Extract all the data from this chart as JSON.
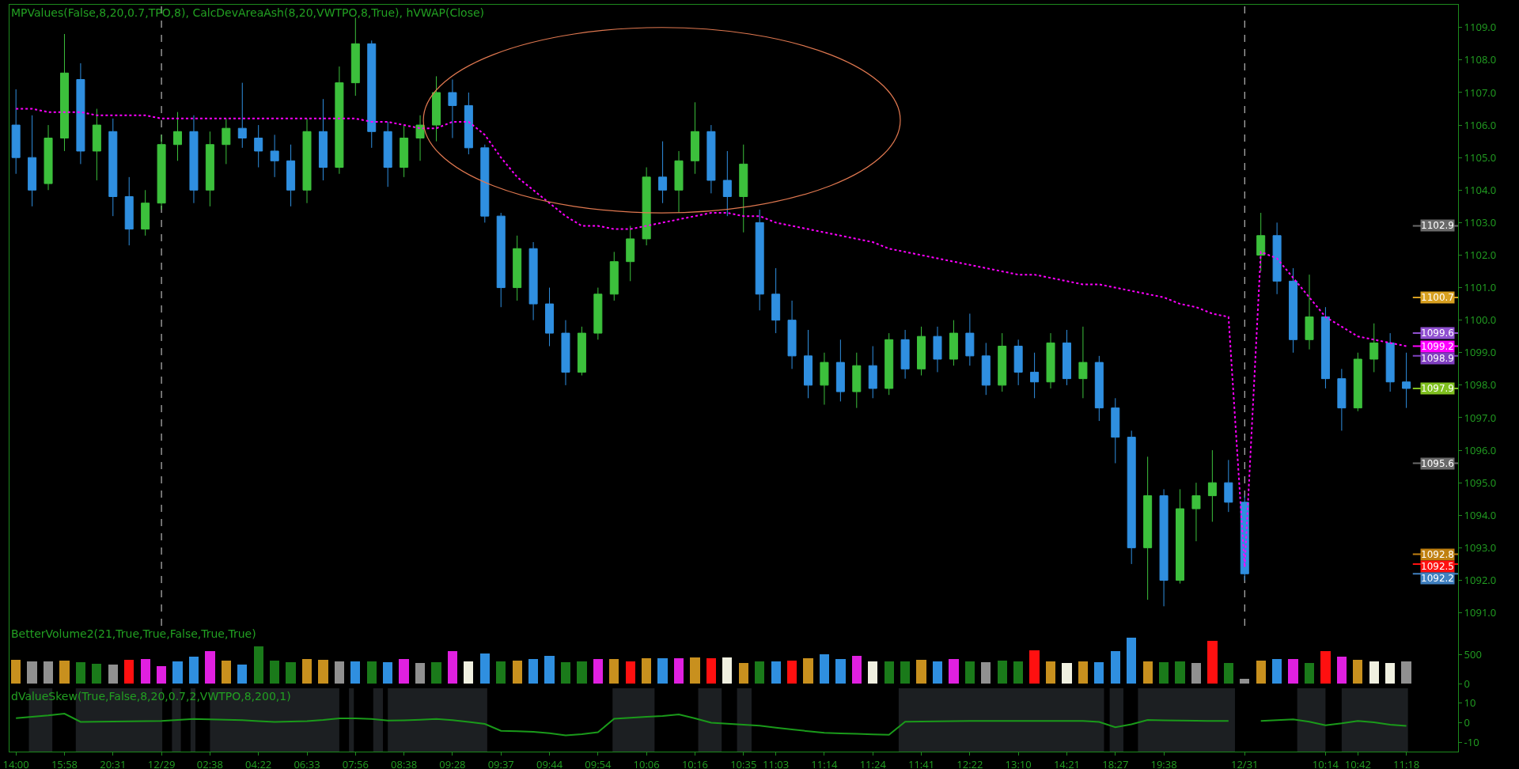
{
  "chart_data": [
    {
      "type": "candlestick",
      "title": "MPValues(False,8,20,0.7,TPO,8), CalcDevAreaAsh(8,20,VWTPO,8,True), hVWAP(Close)",
      "categories": [
        "14:00",
        null,
        null,
        "15:58",
        null,
        null,
        "20:31",
        null,
        null,
        "12/29",
        null,
        null,
        "02:38",
        null,
        null,
        "04:22",
        null,
        null,
        "06:33",
        null,
        null,
        "07:56",
        null,
        null,
        "08:38",
        null,
        null,
        "09:28",
        null,
        null,
        "09:37",
        null,
        null,
        "09:44",
        null,
        null,
        "09:54",
        null,
        null,
        "10:06",
        null,
        null,
        "10:16",
        null,
        null,
        "10:35",
        null,
        "11:03",
        null,
        null,
        "11:14",
        null,
        null,
        "11:24",
        null,
        null,
        "11:41",
        null,
        null,
        "12:22",
        null,
        null,
        "13:10",
        null,
        null,
        "14:21",
        null,
        null,
        "18:27",
        null,
        null,
        "19:38",
        null,
        null,
        null,
        null,
        "12/31",
        null,
        null,
        null,
        null,
        "10:14",
        null,
        "10:42",
        null,
        null,
        "11:18"
      ],
      "ohlc": [
        [
          1106.0,
          1107.1,
          1104.5,
          1105.0
        ],
        [
          1105.0,
          1106.3,
          1103.5,
          1104.0
        ],
        [
          1104.2,
          1106.0,
          1104.0,
          1105.6
        ],
        [
          1105.6,
          1108.8,
          1105.2,
          1107.6
        ],
        [
          1107.4,
          1107.9,
          1104.8,
          1105.2
        ],
        [
          1105.2,
          1106.5,
          1104.3,
          1106.0
        ],
        [
          1105.8,
          1106.2,
          1103.2,
          1103.8
        ],
        [
          1103.8,
          1104.4,
          1102.3,
          1102.8
        ],
        [
          1102.8,
          1104.0,
          1102.6,
          1103.6
        ],
        [
          1103.6,
          1105.7,
          1103.4,
          1105.4
        ],
        [
          1105.4,
          1106.4,
          1104.9,
          1105.8
        ],
        [
          1105.8,
          1106.3,
          1103.6,
          1104.0
        ],
        [
          1104.0,
          1105.8,
          1103.5,
          1105.4
        ],
        [
          1105.4,
          1106.2,
          1104.8,
          1105.9
        ],
        [
          1105.9,
          1107.3,
          1105.3,
          1105.6
        ],
        [
          1105.6,
          1106.0,
          1104.7,
          1105.2
        ],
        [
          1105.2,
          1105.7,
          1104.4,
          1104.9
        ],
        [
          1104.9,
          1105.4,
          1103.5,
          1104.0
        ],
        [
          1104.0,
          1106.2,
          1103.6,
          1105.8
        ],
        [
          1105.8,
          1106.8,
          1104.3,
          1104.7
        ],
        [
          1104.7,
          1107.8,
          1104.5,
          1107.3
        ],
        [
          1107.3,
          1109.3,
          1106.9,
          1108.5
        ],
        [
          1108.5,
          1108.6,
          1105.3,
          1105.8
        ],
        [
          1105.8,
          1106.1,
          1104.1,
          1104.7
        ],
        [
          1104.7,
          1106.0,
          1104.4,
          1105.6
        ],
        [
          1105.6,
          1106.3,
          1104.9,
          1106.0
        ],
        [
          1106.0,
          1107.5,
          1105.5,
          1107.0
        ],
        [
          1107.0,
          1107.4,
          1105.6,
          1106.6
        ],
        [
          1106.6,
          1107.0,
          1105.1,
          1105.3
        ],
        [
          1105.3,
          1105.4,
          1103.0,
          1103.2
        ],
        [
          1103.2,
          1103.3,
          1100.4,
          1101.0
        ],
        [
          1101.0,
          1102.6,
          1100.6,
          1102.2
        ],
        [
          1102.2,
          1102.4,
          1100.0,
          1100.5
        ],
        [
          1100.5,
          1101.0,
          1099.2,
          1099.6
        ],
        [
          1099.6,
          1100.0,
          1098.0,
          1098.4
        ],
        [
          1098.4,
          1099.8,
          1098.3,
          1099.6
        ],
        [
          1099.6,
          1101.0,
          1099.4,
          1100.8
        ],
        [
          1100.8,
          1102.1,
          1100.6,
          1101.8
        ],
        [
          1101.8,
          1102.9,
          1101.2,
          1102.5
        ],
        [
          1102.5,
          1104.7,
          1102.3,
          1104.4
        ],
        [
          1104.4,
          1105.5,
          1103.6,
          1104.0
        ],
        [
          1104.0,
          1105.2,
          1103.3,
          1104.9
        ],
        [
          1104.9,
          1106.7,
          1104.5,
          1105.8
        ],
        [
          1105.8,
          1106.0,
          1103.9,
          1104.3
        ],
        [
          1104.3,
          1105.2,
          1103.2,
          1103.8
        ],
        [
          1103.8,
          1105.4,
          1102.7,
          1104.8
        ],
        [
          1103.0,
          1103.4,
          1100.3,
          1100.8
        ],
        [
          1100.8,
          1101.6,
          1099.6,
          1100.0
        ],
        [
          1100.0,
          1100.6,
          1098.5,
          1098.9
        ],
        [
          1098.9,
          1099.7,
          1097.6,
          1098.0
        ],
        [
          1098.0,
          1099.0,
          1097.4,
          1098.7
        ],
        [
          1098.7,
          1099.4,
          1097.5,
          1097.8
        ],
        [
          1097.8,
          1099.0,
          1097.3,
          1098.6
        ],
        [
          1098.6,
          1099.2,
          1097.6,
          1097.9
        ],
        [
          1097.9,
          1099.6,
          1097.7,
          1099.4
        ],
        [
          1099.4,
          1099.7,
          1098.2,
          1098.5
        ],
        [
          1098.5,
          1099.8,
          1098.3,
          1099.5
        ],
        [
          1099.5,
          1099.8,
          1098.4,
          1098.8
        ],
        [
          1098.8,
          1100.0,
          1098.6,
          1099.6
        ],
        [
          1099.6,
          1100.2,
          1098.6,
          1098.9
        ],
        [
          1098.9,
          1099.3,
          1097.7,
          1098.0
        ],
        [
          1098.0,
          1099.6,
          1097.8,
          1099.2
        ],
        [
          1099.2,
          1099.4,
          1098.0,
          1098.4
        ],
        [
          1098.4,
          1099.0,
          1097.6,
          1098.1
        ],
        [
          1098.1,
          1099.6,
          1097.9,
          1099.3
        ],
        [
          1099.3,
          1099.7,
          1098.0,
          1098.2
        ],
        [
          1098.2,
          1099.8,
          1097.6,
          1098.7
        ],
        [
          1098.7,
          1098.9,
          1096.9,
          1097.3
        ],
        [
          1097.3,
          1097.6,
          1095.6,
          1096.4
        ],
        [
          1096.4,
          1096.6,
          1092.5,
          1093.0
        ],
        [
          1093.0,
          1095.8,
          1091.4,
          1094.6
        ],
        [
          1094.6,
          1094.8,
          1091.2,
          1092.0
        ],
        [
          1092.0,
          1094.8,
          1091.9,
          1094.2
        ],
        [
          1094.2,
          1095.0,
          1093.2,
          1094.6
        ],
        [
          1094.6,
          1096.0,
          1093.8,
          1095.0
        ],
        [
          1095.0,
          1095.7,
          1094.1,
          1094.4
        ],
        [
          1094.4,
          1094.6,
          1092.0,
          1092.2
        ],
        [
          1102.0,
          1103.3,
          1101.5,
          1102.6
        ],
        [
          1102.6,
          1103.0,
          1100.8,
          1101.2
        ],
        [
          1101.2,
          1101.6,
          1099.0,
          1099.4
        ],
        [
          1099.4,
          1101.4,
          1099.1,
          1100.1
        ],
        [
          1100.1,
          1100.4,
          1097.9,
          1098.2
        ],
        [
          1098.2,
          1098.5,
          1096.6,
          1097.3
        ],
        [
          1097.3,
          1099.0,
          1097.2,
          1098.8
        ],
        [
          1098.8,
          1099.9,
          1098.4,
          1099.3
        ],
        [
          1099.3,
          1099.6,
          1097.8,
          1098.1
        ],
        [
          1098.1,
          1099.0,
          1097.3,
          1097.9
        ]
      ],
      "series": [
        {
          "type": "line",
          "color": "#ff00ff",
          "line_style": "dotted",
          "values": [
            1106.5,
            1106.5,
            1106.4,
            1106.4,
            1106.4,
            1106.3,
            1106.3,
            1106.3,
            1106.3,
            1106.2,
            1106.2,
            1106.2,
            1106.2,
            1106.2,
            1106.2,
            1106.2,
            1106.2,
            1106.2,
            1106.2,
            1106.2,
            1106.2,
            1106.2,
            1106.1,
            1106.1,
            1106.0,
            1105.9,
            1105.9,
            1106.1,
            1106.1,
            1105.7,
            1105.0,
            1104.4,
            1104.0,
            1103.6,
            1103.2,
            1102.9,
            1102.9,
            1102.8,
            1102.8,
            1102.9,
            1103.0,
            1103.1,
            1103.2,
            1103.3,
            1103.3,
            1103.2,
            1103.2,
            1103.0,
            1102.9,
            1102.8,
            1102.7,
            1102.6,
            1102.5,
            1102.4,
            1102.2,
            1102.1,
            1102.0,
            1101.9,
            1101.8,
            1101.7,
            1101.6,
            1101.5,
            1101.4,
            1101.4,
            1101.3,
            1101.2,
            1101.1,
            1101.1,
            1101.0,
            1100.9,
            1100.8,
            1100.7,
            1100.5,
            1100.4,
            1100.2,
            1100.1,
            1092.4,
            1102.1,
            1101.9,
            1101.3,
            1100.7,
            1100.1,
            1099.8,
            1099.5,
            1099.4,
            1099.3,
            1099.2
          ]
        }
      ],
      "ref_lines": [
        {
          "axis": "x",
          "value": "12/29",
          "color": "#dddddd",
          "line_style": "dashed"
        },
        {
          "axis": "x",
          "value": "12/31",
          "color": "#dddddd",
          "line_style": "dashed"
        },
        {
          "axis": "y",
          "value": 1102.9,
          "label": "1102.9",
          "color": "#6a6a6a"
        },
        {
          "axis": "y",
          "value": 1100.7,
          "label": "1100.7",
          "color": "#d8a020"
        },
        {
          "axis": "y",
          "value": 1099.6,
          "label": "1099.6",
          "color": "#9050d0"
        },
        {
          "axis": "y",
          "value": 1099.2,
          "label": "1099.2",
          "color": "#ff00ff"
        },
        {
          "axis": "y",
          "value": 1098.9,
          "label": "1098.9",
          "color": "#8040c0"
        },
        {
          "axis": "y",
          "value": 1097.9,
          "label": "1097.9",
          "color": "#80c020"
        },
        {
          "axis": "y",
          "value": 1095.6,
          "label": "1095.6",
          "color": "#6a6a6a"
        },
        {
          "axis": "y",
          "value": 1092.8,
          "label": "1092.8",
          "color": "#c08010"
        },
        {
          "axis": "y",
          "value": 1092.5,
          "label": "1092.5",
          "color": "#ff1010"
        },
        {
          "axis": "y",
          "value": 1092.2,
          "label": "1092.2",
          "color": "#4080c0"
        }
      ],
      "ylim": [
        1090.6,
        1109.7
      ],
      "yticks": [
        {
          "value": 1091,
          "label": "1091.0"
        },
        {
          "value": 1092,
          "label": "1092.0"
        },
        {
          "value": 1093,
          "label": "1093.0"
        },
        {
          "value": 1094,
          "label": "1094.0"
        },
        {
          "value": 1095,
          "label": "1095.0"
        },
        {
          "value": 1096,
          "label": "1096.0"
        },
        {
          "value": 1097,
          "label": "1097.0"
        },
        {
          "value": 1098,
          "label": "1098.0"
        },
        {
          "value": 1099,
          "label": "1099.0"
        },
        {
          "value": 1100,
          "label": "1100.0"
        },
        {
          "value": 1101,
          "label": "1101.0"
        },
        {
          "value": 1102,
          "label": "1102.0"
        },
        {
          "value": 1103,
          "label": "1103.0"
        },
        {
          "value": 1104,
          "label": "1104.0"
        },
        {
          "value": 1105,
          "label": "1105.0"
        },
        {
          "value": 1106,
          "label": "1106.0"
        },
        {
          "value": 1107,
          "label": "1107.0"
        },
        {
          "value": 1108,
          "label": "1108.0"
        },
        {
          "value": 1109,
          "label": "1109.0"
        }
      ],
      "tick_labels": "y"
    },
    {
      "type": "bar",
      "title": "BetterVolume2(21,True,True,False,True,True)",
      "categories": [
        "14:00",
        null,
        null,
        "15:58",
        null,
        null,
        "20:31",
        null,
        null,
        "12/29",
        null,
        null,
        "02:38",
        null,
        null,
        "04:22",
        null,
        null,
        "06:33",
        null,
        null,
        "07:56",
        null,
        null,
        "08:38",
        null,
        null,
        "09:28",
        null,
        null,
        "09:37",
        null,
        null,
        "09:44",
        null,
        null,
        "09:54",
        null,
        null,
        "10:06",
        null,
        null,
        "10:16",
        null,
        null,
        "10:35",
        null,
        "11:03",
        null,
        null,
        "11:14",
        null,
        null,
        "11:24",
        null,
        null,
        "11:41",
        null,
        null,
        "12:22",
        null,
        null,
        "13:10",
        null,
        null,
        "14:21",
        null,
        null,
        "18:27",
        null,
        null,
        "19:38",
        null,
        null,
        null,
        null,
        "12/31",
        null,
        null,
        null,
        null,
        "10:14",
        null,
        "10:42",
        null,
        null,
        "11:18"
      ],
      "values": [
        410,
        380,
        390,
        400,
        370,
        350,
        330,
        410,
        430,
        300,
        380,
        470,
        560,
        400,
        330,
        640,
        400,
        370,
        420,
        410,
        380,
        390,
        380,
        370,
        420,
        360,
        370,
        560,
        380,
        520,
        380,
        400,
        420,
        480,
        370,
        390,
        430,
        420,
        390,
        440,
        440,
        440,
        450,
        440,
        450,
        360,
        380,
        390,
        400,
        440,
        510,
        430,
        480,
        380,
        390,
        380,
        410,
        390,
        430,
        380,
        370,
        400,
        380,
        570,
        380,
        360,
        380,
        370,
        560,
        800,
        380,
        370,
        380,
        360,
        740,
        360,
        80,
        400,
        420,
        420,
        360,
        560,
        470,
        410,
        380,
        360,
        380
      ],
      "colors": [
        "#c8901e",
        "#909090",
        "#909090",
        "#c8901e",
        "#1a7a1a",
        "#1a7a1a",
        "#909090",
        "#ff1010",
        "#e020e0",
        "#e020e0",
        "#2f8fe0",
        "#2f8fe0",
        "#e020e0",
        "#c8901e",
        "#2f8fe0",
        "#1a7a1a",
        "#1a7a1a",
        "#1a7a1a",
        "#c8901e",
        "#c8901e",
        "#909090",
        "#2f8fe0",
        "#1a7a1a",
        "#2f8fe0",
        "#e020e0",
        "#909090",
        "#1a7a1a",
        "#e020e0",
        "#f0f0e0",
        "#2f8fe0",
        "#1a7a1a",
        "#c8901e",
        "#2f8fe0",
        "#2f8fe0",
        "#1a7a1a",
        "#1a7a1a",
        "#e020e0",
        "#c8901e",
        "#ff1010",
        "#c8901e",
        "#2f8fe0",
        "#e020e0",
        "#c8901e",
        "#ff1010",
        "#f0f0e0",
        "#c8901e",
        "#1a7a1a",
        "#2f8fe0",
        "#ff1010",
        "#c8901e",
        "#2f8fe0",
        "#2f8fe0",
        "#e020e0",
        "#f0f0e0",
        "#1a7a1a",
        "#1a7a1a",
        "#c8901e",
        "#2f8fe0",
        "#e020e0",
        "#1a7a1a",
        "#909090",
        "#1a7a1a",
        "#1a7a1a",
        "#ff1010",
        "#c8901e",
        "#f0f0e0",
        "#c8901e",
        "#2f8fe0",
        "#2f8fe0",
        "#2f8fe0",
        "#c8901e",
        "#1a7a1a",
        "#1a7a1a",
        "#909090",
        "#ff1010",
        "#1a7a1a",
        "#909090",
        "#c8901e",
        "#2f8fe0",
        "#e020e0",
        "#1a7a1a",
        "#ff1010",
        "#e020e0",
        "#c8901e",
        "#f0f0e0",
        "#f0f0e0",
        "#909090"
      ],
      "ylim": [
        -80,
        1000
      ],
      "yticks": [
        0,
        500
      ],
      "tick_labels": "y"
    },
    {
      "type": "line",
      "title": "dValueSkew(True,False,8,20,0.7,2,VWTPO,8,200,1)",
      "categories": [
        "14:00",
        null,
        null,
        "15:58",
        null,
        null,
        "20:31",
        null,
        null,
        "12/29",
        null,
        null,
        "02:38",
        null,
        null,
        "04:22",
        null,
        null,
        "06:33",
        null,
        null,
        "07:56",
        null,
        null,
        "08:38",
        null,
        null,
        "09:28",
        null,
        null,
        "09:37",
        null,
        null,
        "09:44",
        null,
        null,
        "09:54",
        null,
        null,
        "10:06",
        null,
        null,
        "10:16",
        null,
        null,
        "10:35",
        null,
        "11:03",
        null,
        null,
        "11:14",
        null,
        null,
        "11:24",
        null,
        null,
        "11:41",
        null,
        null,
        "12:22",
        null,
        null,
        "13:10",
        null,
        null,
        "14:21",
        null,
        null,
        "18:27",
        null,
        null,
        "19:38",
        null,
        null,
        null,
        null,
        "12/31",
        null,
        null,
        null,
        null,
        "10:14",
        null,
        "10:42",
        null,
        null,
        "11:18"
      ],
      "series": [
        {
          "color": "#1a9a1a",
          "values": [
            2.1,
            2.8,
            3.5,
            4.4,
            0.2,
            0.3,
            0.4,
            0.5,
            0.6,
            0.7,
            1.2,
            1.7,
            1.5,
            1.3,
            1.1,
            0.6,
            0.2,
            0.4,
            0.6,
            1.2,
            2.0,
            2.0,
            1.7,
            0.9,
            1.0,
            1.3,
            1.7,
            1.1,
            0.2,
            -0.8,
            -4.3,
            -4.5,
            -4.8,
            -5.5,
            -6.6,
            -6.0,
            -5.0,
            1.8,
            2.3,
            2.8,
            3.2,
            4.0,
            2.0,
            -0.2,
            -0.7,
            -1.2,
            -1.7,
            -2.7,
            -3.6,
            -4.5,
            -5.3,
            -5.6,
            -5.8,
            -6.1,
            -6.3,
            0.3,
            0.4,
            0.5,
            0.6,
            0.7,
            0.7,
            0.7,
            0.7,
            0.7,
            0.7,
            0.7,
            0.7,
            0.2,
            -2.5,
            -1.0,
            1.2,
            1.0,
            0.9,
            0.8,
            0.7,
            0.7,
            null,
            0.7,
            1.1,
            1.5,
            0.3,
            -1.5,
            -0.5,
            0.7,
            0.0,
            -1.2,
            -1.8
          ]
        }
      ],
      "ylim": [
        -14.8,
        17.2
      ],
      "yticks": [
        -10,
        0,
        10
      ]
    }
  ]
}
